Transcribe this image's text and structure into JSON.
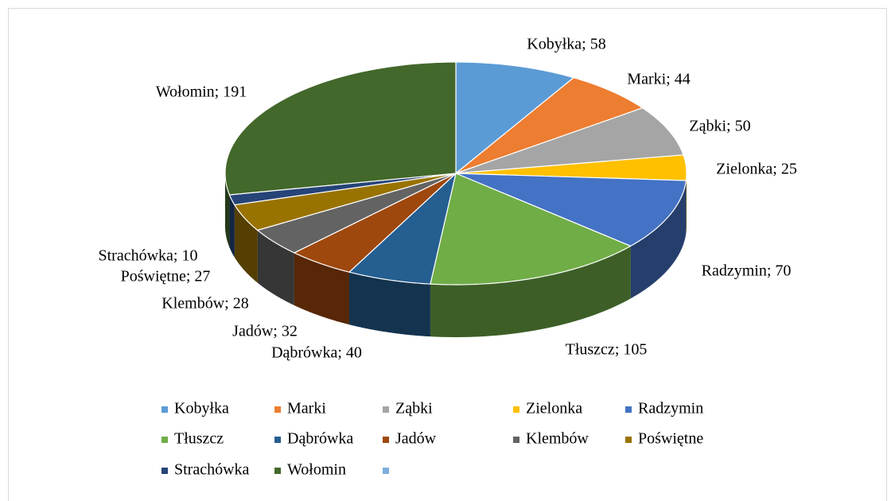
{
  "chart_data": {
    "type": "pie3d",
    "categories": [
      "Kobyłka",
      "Marki",
      "Ząbki",
      "Zielonka",
      "Radzymin",
      "Tłuszcz",
      "Dąbrówka",
      "Jadów",
      "Klembów",
      "Poświętne",
      "Strachówka",
      "Wołomin",
      null
    ],
    "values": [
      58,
      44,
      50,
      25,
      70,
      105,
      40,
      32,
      28,
      27,
      10,
      191,
      null
    ],
    "value_labels": [
      "Kobyłka; 58",
      "Marki; 44",
      "Ząbki; 50",
      "Zielonka; 25",
      "Radzymin; 70",
      "Tłuszcz; 105",
      "Dąbrówka; 40",
      "Jadów; 32",
      "Klembów; 28",
      "Poświętne; 27",
      "Strachówka; 10",
      "Wołomin; 191",
      null
    ],
    "colors": [
      "#5b9bd5",
      "#ed7d31",
      "#a5a5a5",
      "#ffc000",
      "#4472c4",
      "#70ad47",
      "#255e91",
      "#9e480e",
      "#636363",
      "#997300",
      "#264478",
      "#43682b",
      "#7cafdd"
    ],
    "legend": "bottom"
  }
}
